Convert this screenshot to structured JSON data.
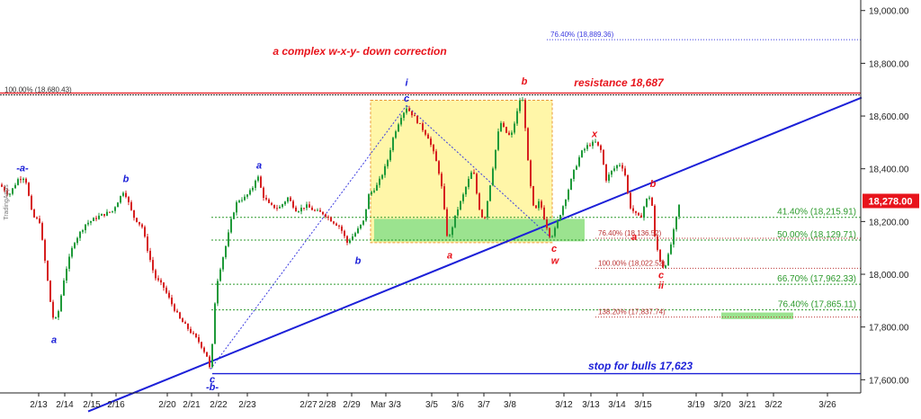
{
  "chart_data": {
    "type": "candlestick",
    "title": "a complex w-x-y- down correction",
    "watermark": "TradingApps",
    "ylim": [
      17550,
      19040
    ],
    "y_ticks": [
      "19,000.00",
      "18,800.00",
      "18,600.00",
      "18,400.00",
      "18,200.00",
      "18,000.00",
      "17,800.00",
      "17,600.00"
    ],
    "y_tick_values": [
      19000,
      18800,
      18600,
      18400,
      18200,
      18000,
      17800,
      17600
    ],
    "x_ticks": [
      "2/13",
      "2/14",
      "2/15",
      "2/16",
      "2/20",
      "2/21",
      "2/22",
      "2/23",
      "2/27",
      "2/28",
      "2/29",
      "Mar 3/3",
      "3/5",
      "3/6",
      "3/7",
      "3/8",
      "3/12",
      "3/13",
      "3/14",
      "3/15",
      "3/19",
      "3/20",
      "3/21",
      "3/22",
      "3/26"
    ],
    "last_price": "18,278.00",
    "last_price_value": 18278,
    "price_path": [
      [
        0,
        18340
      ],
      [
        10,
        18300
      ],
      [
        20,
        18360
      ],
      [
        28,
        18370
      ],
      [
        36,
        18220
      ],
      [
        44,
        18200
      ],
      [
        52,
        18000
      ],
      [
        57,
        17870
      ],
      [
        60,
        17820
      ],
      [
        64,
        17840
      ],
      [
        72,
        18000
      ],
      [
        82,
        18120
      ],
      [
        95,
        18190
      ],
      [
        110,
        18220
      ],
      [
        125,
        18240
      ],
      [
        138,
        18320
      ],
      [
        148,
        18220
      ],
      [
        158,
        18180
      ],
      [
        165,
        18080
      ],
      [
        172,
        17990
      ],
      [
        182,
        17950
      ],
      [
        192,
        17880
      ],
      [
        200,
        17830
      ],
      [
        210,
        17790
      ],
      [
        222,
        17740
      ],
      [
        230,
        17690
      ],
      [
        234,
        17630
      ],
      [
        237,
        17780
      ],
      [
        240,
        17950
      ],
      [
        246,
        18040
      ],
      [
        252,
        18120
      ],
      [
        258,
        18220
      ],
      [
        264,
        18280
      ],
      [
        272,
        18290
      ],
      [
        280,
        18320
      ],
      [
        286,
        18380
      ],
      [
        292,
        18300
      ],
      [
        300,
        18260
      ],
      [
        310,
        18250
      ],
      [
        320,
        18290
      ],
      [
        330,
        18240
      ],
      [
        340,
        18260
      ],
      [
        350,
        18240
      ],
      [
        360,
        18230
      ],
      [
        370,
        18200
      ],
      [
        378,
        18180
      ],
      [
        386,
        18120
      ],
      [
        396,
        18160
      ],
      [
        404,
        18200
      ],
      [
        410,
        18300
      ],
      [
        420,
        18340
      ],
      [
        430,
        18420
      ],
      [
        438,
        18530
      ],
      [
        446,
        18600
      ],
      [
        452,
        18632
      ],
      [
        460,
        18600
      ],
      [
        468,
        18560
      ],
      [
        476,
        18520
      ],
      [
        484,
        18440
      ],
      [
        490,
        18360
      ],
      [
        494,
        18240
      ],
      [
        498,
        18120
      ],
      [
        502,
        18170
      ],
      [
        508,
        18240
      ],
      [
        514,
        18290
      ],
      [
        520,
        18350
      ],
      [
        526,
        18400
      ],
      [
        532,
        18260
      ],
      [
        538,
        18200
      ],
      [
        544,
        18320
      ],
      [
        550,
        18450
      ],
      [
        556,
        18580
      ],
      [
        562,
        18540
      ],
      [
        568,
        18520
      ],
      [
        574,
        18600
      ],
      [
        580,
        18690
      ],
      [
        584,
        18560
      ],
      [
        588,
        18380
      ],
      [
        594,
        18230
      ],
      [
        600,
        18280
      ],
      [
        606,
        18200
      ],
      [
        612,
        18140
      ],
      [
        616,
        18160
      ],
      [
        622,
        18220
      ],
      [
        630,
        18300
      ],
      [
        638,
        18390
      ],
      [
        646,
        18460
      ],
      [
        654,
        18490
      ],
      [
        662,
        18500
      ],
      [
        668,
        18470
      ],
      [
        674,
        18360
      ],
      [
        680,
        18390
      ],
      [
        688,
        18420
      ],
      [
        694,
        18400
      ],
      [
        700,
        18260
      ],
      [
        706,
        18230
      ],
      [
        712,
        18210
      ],
      [
        718,
        18280
      ],
      [
        724,
        18300
      ],
      [
        728,
        18140
      ],
      [
        733,
        18060
      ],
      [
        738,
        18020
      ],
      [
        744,
        18080
      ],
      [
        750,
        18180
      ],
      [
        756,
        18278
      ]
    ],
    "trendline": {
      "from": [
        98,
        17480
      ],
      "to": [
        958,
        18670
      ]
    },
    "dotted_lines": [
      {
        "from": [
          234,
          17640
        ],
        "to": [
          452,
          18640
        ]
      },
      {
        "from": [
          452,
          18640
        ],
        "to": [
          612,
          18140
        ]
      }
    ],
    "horizontal_lines": [
      {
        "id": "resistance",
        "value": 18687,
        "label": "resistance 18,687"
      },
      {
        "id": "stop",
        "value": 17623,
        "label": "stop for bulls 17,623"
      }
    ],
    "fib_levels": [
      {
        "label": "100.00% (18,680.43)",
        "value": 18680.43
      },
      {
        "label": "76.40% (18,889.36)",
        "value": 18889.36
      },
      {
        "label": "41.40% (18,215.91)",
        "value": 18215.91
      },
      {
        "label": "50.00% (18,129.71)",
        "value": 18129.71
      },
      {
        "label": "76.40% (18,136.52)",
        "value": 18136.52
      },
      {
        "label": "100.00% (18,022.52)",
        "value": 18022.52
      },
      {
        "label": "66.70% (17,962.33)",
        "value": 17962.33
      },
      {
        "label": "76.40% (17,865.11)",
        "value": 17865.11
      },
      {
        "label": "138.20% (17,837.74)",
        "value": 17837.74
      }
    ],
    "zones": [
      {
        "id": "yellow-box",
        "color": "#fff6a8",
        "from": [
          412,
          18120
        ],
        "to": [
          614,
          18660
        ]
      },
      {
        "id": "green-box",
        "color": "#9be38f",
        "from": [
          416,
          18125
        ],
        "to": [
          650,
          18210
        ]
      },
      {
        "id": "green-target",
        "color": "#9be38f",
        "from": [
          802,
          17830
        ],
        "to": [
          882,
          17855
        ]
      }
    ],
    "wave_labels": [
      {
        "text": "-a-",
        "color": "blue",
        "at": [
          25,
          18390
        ]
      },
      {
        "text": "a",
        "color": "blue",
        "at": [
          60,
          17740
        ]
      },
      {
        "text": "b",
        "color": "blue",
        "at": [
          140,
          18350
        ]
      },
      {
        "text": "a",
        "color": "blue",
        "at": [
          288,
          18400
        ]
      },
      {
        "text": "c",
        "color": "blue",
        "at": [
          236,
          17590
        ]
      },
      {
        "text": "-b-",
        "color": "blue",
        "at": [
          236,
          17560
        ]
      },
      {
        "text": "b",
        "color": "blue",
        "at": [
          398,
          18040
        ]
      },
      {
        "text": "i",
        "color": "blue",
        "at": [
          452,
          18715
        ]
      },
      {
        "text": "c",
        "color": "blue",
        "at": [
          452,
          18655
        ]
      },
      {
        "text": "a",
        "color": "red",
        "at": [
          500,
          18060
        ]
      },
      {
        "text": "b",
        "color": "red",
        "at": [
          583,
          18720
        ]
      },
      {
        "text": "x",
        "color": "red",
        "at": [
          661,
          18520
        ]
      },
      {
        "text": "c",
        "color": "red",
        "at": [
          616,
          18085
        ]
      },
      {
        "text": "w",
        "color": "red",
        "at": [
          617,
          18040
        ]
      },
      {
        "text": "b",
        "color": "red",
        "at": [
          726,
          18330
        ]
      },
      {
        "text": "a",
        "color": "red",
        "at": [
          705,
          18130
        ]
      },
      {
        "text": "c",
        "color": "red",
        "at": [
          735,
          17985
        ]
      },
      {
        "text": "ii",
        "color": "red",
        "at": [
          735,
          17945
        ]
      }
    ]
  }
}
